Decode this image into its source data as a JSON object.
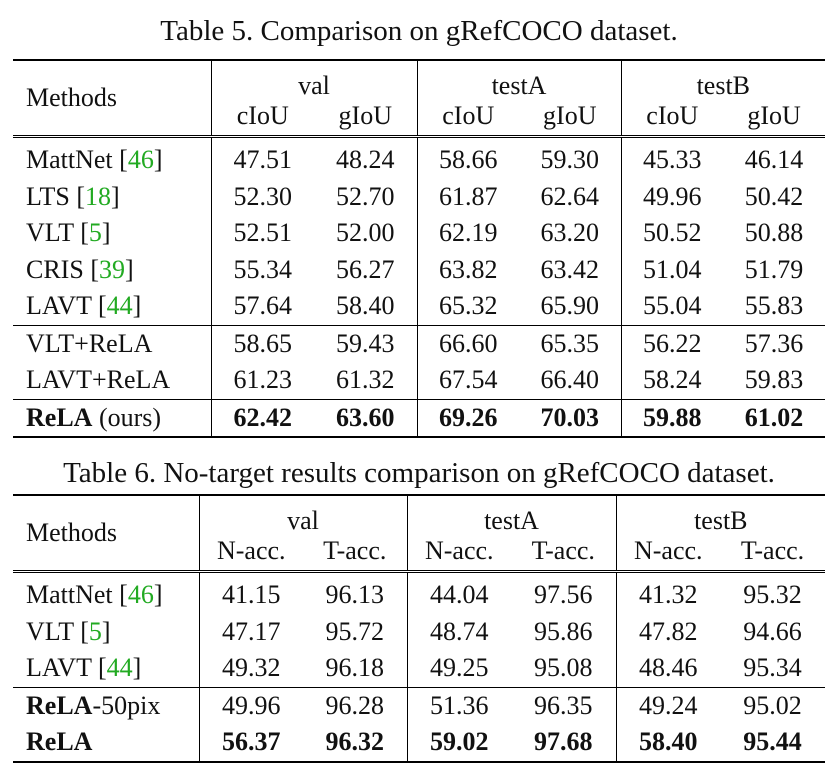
{
  "table5": {
    "caption": "Table 5. Comparison on gRefCOCO dataset.",
    "methods_header": "Methods",
    "groups": [
      "val",
      "testA",
      "testB"
    ],
    "metrics": [
      "cIoU",
      "gIoU",
      "cIoU",
      "gIoU",
      "cIoU",
      "gIoU"
    ],
    "rows": [
      {
        "name": "MattNet",
        "cite": "46",
        "values": [
          "47.51",
          "48.24",
          "58.66",
          "59.30",
          "45.33",
          "46.14"
        ]
      },
      {
        "name": "LTS",
        "cite": "18",
        "values": [
          "52.30",
          "52.70",
          "61.87",
          "62.64",
          "49.96",
          "50.42"
        ]
      },
      {
        "name": "VLT",
        "cite": "5",
        "values": [
          "52.51",
          "52.00",
          "62.19",
          "63.20",
          "50.52",
          "50.88"
        ]
      },
      {
        "name": "CRIS",
        "cite": "39",
        "values": [
          "55.34",
          "56.27",
          "63.82",
          "63.42",
          "51.04",
          "51.79"
        ]
      },
      {
        "name": "LAVT",
        "cite": "44",
        "values": [
          "57.64",
          "58.40",
          "65.32",
          "65.90",
          "55.04",
          "55.83"
        ]
      },
      {
        "name": "VLT+ReLA",
        "values": [
          "58.65",
          "59.43",
          "66.60",
          "65.35",
          "56.22",
          "57.36"
        ]
      },
      {
        "name": "LAVT+ReLA",
        "values": [
          "61.23",
          "61.32",
          "67.54",
          "66.40",
          "58.24",
          "59.83"
        ]
      },
      {
        "name_bold": "ReLA",
        "suffix": " (ours)",
        "values": [
          "62.42",
          "63.60",
          "69.26",
          "70.03",
          "59.88",
          "61.02"
        ]
      }
    ]
  },
  "table6": {
    "caption": "Table 6. No-target results comparison on gRefCOCO dataset.",
    "methods_header": "Methods",
    "groups": [
      "val",
      "testA",
      "testB"
    ],
    "metrics": [
      "N-acc.",
      "T-acc.",
      "N-acc.",
      "T-acc.",
      "N-acc.",
      "T-acc."
    ],
    "rows": [
      {
        "name": "MattNet",
        "cite": "46",
        "values": [
          "41.15",
          "96.13",
          "44.04",
          "97.56",
          "41.32",
          "95.32"
        ]
      },
      {
        "name": "VLT",
        "cite": "5",
        "values": [
          "47.17",
          "95.72",
          "48.74",
          "95.86",
          "47.82",
          "94.66"
        ]
      },
      {
        "name": "LAVT",
        "cite": "44",
        "values": [
          "49.32",
          "96.18",
          "49.25",
          "95.08",
          "48.46",
          "95.34"
        ]
      },
      {
        "name_bold": "ReLA",
        "suffix": "-50pix",
        "values": [
          "49.96",
          "96.28",
          "51.36",
          "96.35",
          "49.24",
          "95.02"
        ]
      },
      {
        "name_bold": "ReLA",
        "suffix": "",
        "values": [
          "56.37",
          "96.32",
          "59.02",
          "97.68",
          "58.40",
          "95.44"
        ]
      }
    ]
  }
}
